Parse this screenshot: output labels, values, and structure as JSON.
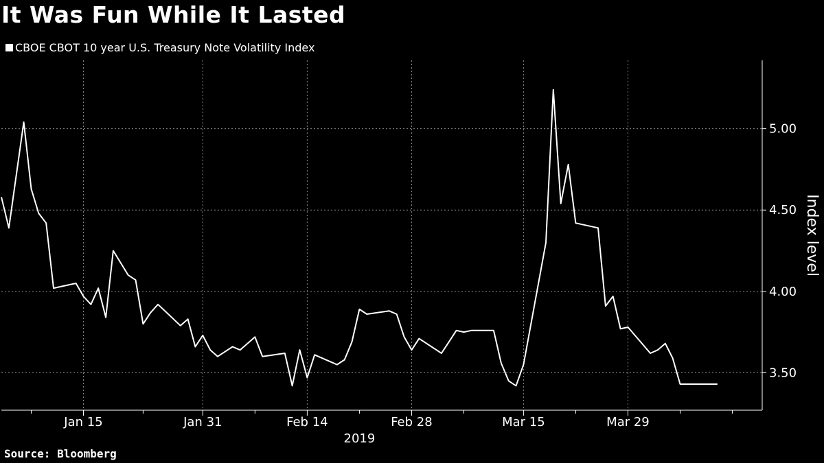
{
  "title": "It Was Fun While It Lasted",
  "source": "Source: Bloomberg",
  "chart_data": {
    "type": "line",
    "title": "It Was Fun While It Lasted",
    "xlabel": "2019",
    "ylabel": "Index level",
    "ylim": [
      3.27,
      5.42
    ],
    "yticks": [
      3.5,
      4.0,
      4.5,
      5.0
    ],
    "ytick_labels": [
      "3.50",
      "4.00",
      "4.50",
      "5.00"
    ],
    "xlim": [
      "2019-01-04",
      "2019-04-16"
    ],
    "xticks": [
      "2019-01-15",
      "2019-01-31",
      "2019-02-14",
      "2019-02-28",
      "2019-03-15",
      "2019-03-29"
    ],
    "xtick_labels": [
      "Jan 15",
      "Jan 31",
      "Feb 14",
      "Feb 28",
      "Mar 15",
      "Mar 29"
    ],
    "minor_xticks": [
      "2019-01-08",
      "2019-01-23",
      "2019-02-07",
      "2019-02-21",
      "2019-03-07",
      "2019-03-22",
      "2019-04-05",
      "2019-04-12"
    ],
    "grid": true,
    "legend_position": "top-left",
    "series": [
      {
        "name": "CBOE CBOT 10 year U.S. Treasury Note Volatility Index",
        "color": "#ffffff",
        "x": [
          "2019-01-04",
          "2019-01-05",
          "2019-01-07",
          "2019-01-08",
          "2019-01-09",
          "2019-01-10",
          "2019-01-11",
          "2019-01-14",
          "2019-01-15",
          "2019-01-16",
          "2019-01-17",
          "2019-01-18",
          "2019-01-19",
          "2019-01-21",
          "2019-01-22",
          "2019-01-23",
          "2019-01-24",
          "2019-01-25",
          "2019-01-28",
          "2019-01-29",
          "2019-01-30",
          "2019-01-31",
          "2019-02-01",
          "2019-02-02",
          "2019-02-04",
          "2019-02-05",
          "2019-02-06",
          "2019-02-07",
          "2019-02-08",
          "2019-02-11",
          "2019-02-12",
          "2019-02-13",
          "2019-02-14",
          "2019-02-15",
          "2019-02-18",
          "2019-02-19",
          "2019-02-20",
          "2019-02-21",
          "2019-02-22",
          "2019-02-25",
          "2019-02-26",
          "2019-02-27",
          "2019-02-28",
          "2019-03-01",
          "2019-03-04",
          "2019-03-05",
          "2019-03-06",
          "2019-03-07",
          "2019-03-08",
          "2019-03-11",
          "2019-03-12",
          "2019-03-13",
          "2019-03-14",
          "2019-03-15",
          "2019-03-18",
          "2019-03-19",
          "2019-03-20",
          "2019-03-21",
          "2019-03-22",
          "2019-03-25",
          "2019-03-26",
          "2019-03-27",
          "2019-03-28",
          "2019-03-29",
          "2019-04-01",
          "2019-04-02",
          "2019-04-03",
          "2019-04-04",
          "2019-04-05",
          "2019-04-08",
          "2019-04-09",
          "2019-04-10",
          "2019-04-11",
          "2019-04-12"
        ],
        "values": [
          4.58,
          4.39,
          5.04,
          4.63,
          4.48,
          4.42,
          4.02,
          4.05,
          3.97,
          3.92,
          4.02,
          3.84,
          4.25,
          4.1,
          4.07,
          3.8,
          3.87,
          3.92,
          3.79,
          3.83,
          3.66,
          3.73,
          3.64,
          3.6,
          3.66,
          3.64,
          3.68,
          3.72,
          3.6,
          3.62,
          3.42,
          3.64,
          3.47,
          3.61,
          3.55,
          3.58,
          3.69,
          3.89,
          3.86,
          3.88,
          3.86,
          3.72,
          3.64,
          3.71,
          3.62,
          3.69,
          3.76,
          3.75,
          3.76,
          3.76,
          3.56,
          3.45,
          3.42,
          3.55,
          4.3,
          5.24,
          4.54,
          4.78,
          4.42,
          4.39,
          3.91,
          3.97,
          3.77,
          3.78,
          3.62,
          3.64,
          3.68,
          3.59,
          3.43,
          3.43,
          3.43,
          3.43,
          3.43,
          3.43
        ]
      }
    ]
  }
}
